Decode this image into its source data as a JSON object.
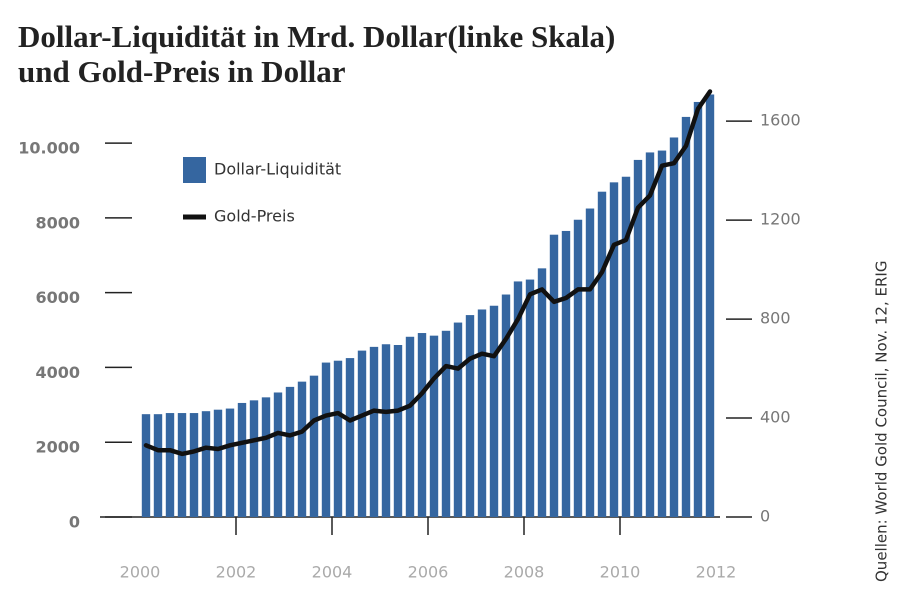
{
  "chart_data": {
    "type": "bar-line",
    "title": [
      "Dollar-Liquidität in Mrd. Dollar(linke Skala)",
      "und Gold-Preis in Dollar"
    ],
    "source": "Quellen: World Gold Council, Nov. 12, ERIG",
    "x": [
      2000.125,
      2000.375,
      2000.625,
      2000.875,
      2001.125,
      2001.375,
      2001.625,
      2001.875,
      2002.125,
      2002.375,
      2002.625,
      2002.875,
      2003.125,
      2003.375,
      2003.625,
      2003.875,
      2004.125,
      2004.375,
      2004.625,
      2004.875,
      2005.125,
      2005.375,
      2005.625,
      2005.875,
      2006.125,
      2006.375,
      2006.625,
      2006.875,
      2007.125,
      2007.375,
      2007.625,
      2007.875,
      2008.125,
      2008.375,
      2008.625,
      2008.875,
      2009.125,
      2009.375,
      2009.625,
      2009.875,
      2010.125,
      2010.375,
      2010.625,
      2010.875,
      2011.125,
      2011.375,
      2011.625,
      2011.875
    ],
    "series": [
      {
        "name": "Dollar-Liquidität",
        "color": "#3566a0",
        "axis": "y",
        "values": [
          2750,
          2750,
          2780,
          2780,
          2780,
          2830,
          2870,
          2900,
          3050,
          3120,
          3200,
          3330,
          3480,
          3620,
          3780,
          4130,
          4180,
          4250,
          4450,
          4550,
          4620,
          4600,
          4820,
          4920,
          4850,
          4980,
          5200,
          5400,
          5550,
          5650,
          5950,
          6300,
          6350,
          6650,
          7550,
          7650,
          7950,
          8250,
          8700,
          8950,
          9100,
          9550,
          9750,
          9800,
          10150,
          10700,
          11100,
          11300
        ]
      },
      {
        "name": "Gold-Preis",
        "color": "#111111",
        "axis": "y2",
        "values": [
          290,
          270,
          270,
          255,
          265,
          280,
          275,
          290,
          300,
          310,
          320,
          340,
          330,
          345,
          390,
          410,
          420,
          390,
          410,
          430,
          425,
          430,
          450,
          500,
          560,
          610,
          600,
          640,
          660,
          650,
          720,
          800,
          900,
          920,
          870,
          885,
          920,
          920,
          990,
          1100,
          1120,
          1250,
          1300,
          1420,
          1430,
          1500,
          1650,
          1720
        ]
      }
    ],
    "xlim": [
      2000,
      2012
    ],
    "xticks": [
      2000,
      2002,
      2004,
      2006,
      2008,
      2010,
      2012
    ],
    "ylim": [
      0,
      11500
    ],
    "yticks": [
      0,
      2000,
      4000,
      6000,
      8000,
      {
        "value": 10000,
        "label": "10.000"
      }
    ],
    "y2lim": [
      0,
      1738
    ],
    "y2ticks": [
      0,
      400,
      800,
      1200,
      1600
    ]
  }
}
